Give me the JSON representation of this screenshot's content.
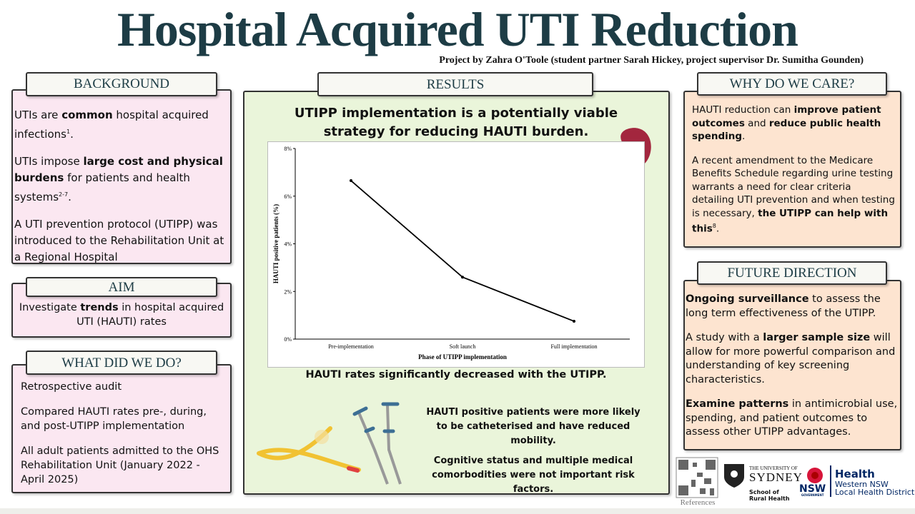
{
  "header": {
    "title": "Hospital Acquired UTI Reduction",
    "subtitle": "Project by Zahra O'Toole (student partner Sarah Hickey, project supervisor Dr. Sumitha Gounden)"
  },
  "background": {
    "heading": "BACKGROUND",
    "paragraphs": [
      [
        "UTIs are ",
        "common",
        " hospital acquired infections",
        "1",
        "."
      ],
      [
        "UTIs impose ",
        "large cost and physical burdens",
        " for patients and health systems",
        "2-7",
        "."
      ],
      [
        "A UTI prevention protocol (UTIPP) was introduced to the Rehabilitation Unit at a Regional Hospital"
      ]
    ]
  },
  "aim": {
    "heading": "AIM",
    "paragraphs": [
      [
        "Investigate ",
        "trends",
        " in hospital acquired UTI (HAUTI) rates"
      ]
    ]
  },
  "methods": {
    "heading": "WHAT DID WE DO?",
    "paragraphs": [
      "Retrospective audit",
      "Compared HAUTI rates pre-, during, and post-UTIPP implementation",
      "All adult patients admitted to the OHS Rehabilitation Unit (January 2022 - April 2025)"
    ]
  },
  "results": {
    "heading": "RESULTS",
    "headline": "UTIPP implementation is a potentially viable strategy for reducing HAUTI burden.",
    "conclusion": "HAUTI rates significantly decreased with the UTIPP.",
    "findings": [
      "HAUTI positive patients were more likely to be catheterised and have reduced mobility.",
      "Cognitive status and multiple medical comorbodities were not important risk factors."
    ]
  },
  "why": {
    "heading": "WHY DO WE CARE?",
    "paragraphs": [
      [
        "HAUTI reduction can ",
        "improve patient outcomes",
        " and ",
        "reduce public health spending",
        "."
      ],
      [
        "A recent amendment to the Medicare Benefits Schedule regarding urine testing warrants a need for clear criteria detailing UTI prevention and when testing is necessary, ",
        "the UTIPP can help with this",
        "8",
        "."
      ]
    ]
  },
  "future": {
    "heading": "FUTURE DIRECTION",
    "paragraphs": [
      [
        "Ongoing surveillance",
        " to assess the long term effectiveness of the UTIPP."
      ],
      [
        "A study with a ",
        "larger sample size",
        " will allow for more powerful comparison and understanding of key screening characteristics."
      ],
      [
        "Examine patterns",
        " in antimicrobial use, spending, and patient outcomes to assess other UTIPP advantages."
      ]
    ]
  },
  "logos": {
    "qr_caption": "References",
    "university": [
      "THE UNIVERSITY OF",
      "SYDNEY"
    ],
    "school": [
      "School of",
      "Rural Health"
    ],
    "nsw": [
      "NSW",
      "GOVERNMENT"
    ],
    "health": [
      "Health",
      "Western NSW",
      "Local Health District"
    ]
  },
  "chart_data": {
    "type": "line",
    "x_label": "Phase of UTIPP implementation",
    "y_label": "HAUTI positive patients (%)",
    "categories": [
      "Pre-implementation",
      "Soft launch",
      "Full implementation"
    ],
    "values": [
      6.65,
      2.6,
      0.75
    ],
    "color": "#000000",
    "ylim": [
      0,
      8
    ],
    "yticks": [
      {
        "value": 0,
        "label": "0%"
      },
      {
        "value": 2,
        "label": "2%"
      },
      {
        "value": 4,
        "label": "4%"
      },
      {
        "value": 6,
        "label": "6%"
      },
      {
        "value": 8,
        "label": "8%"
      }
    ]
  }
}
